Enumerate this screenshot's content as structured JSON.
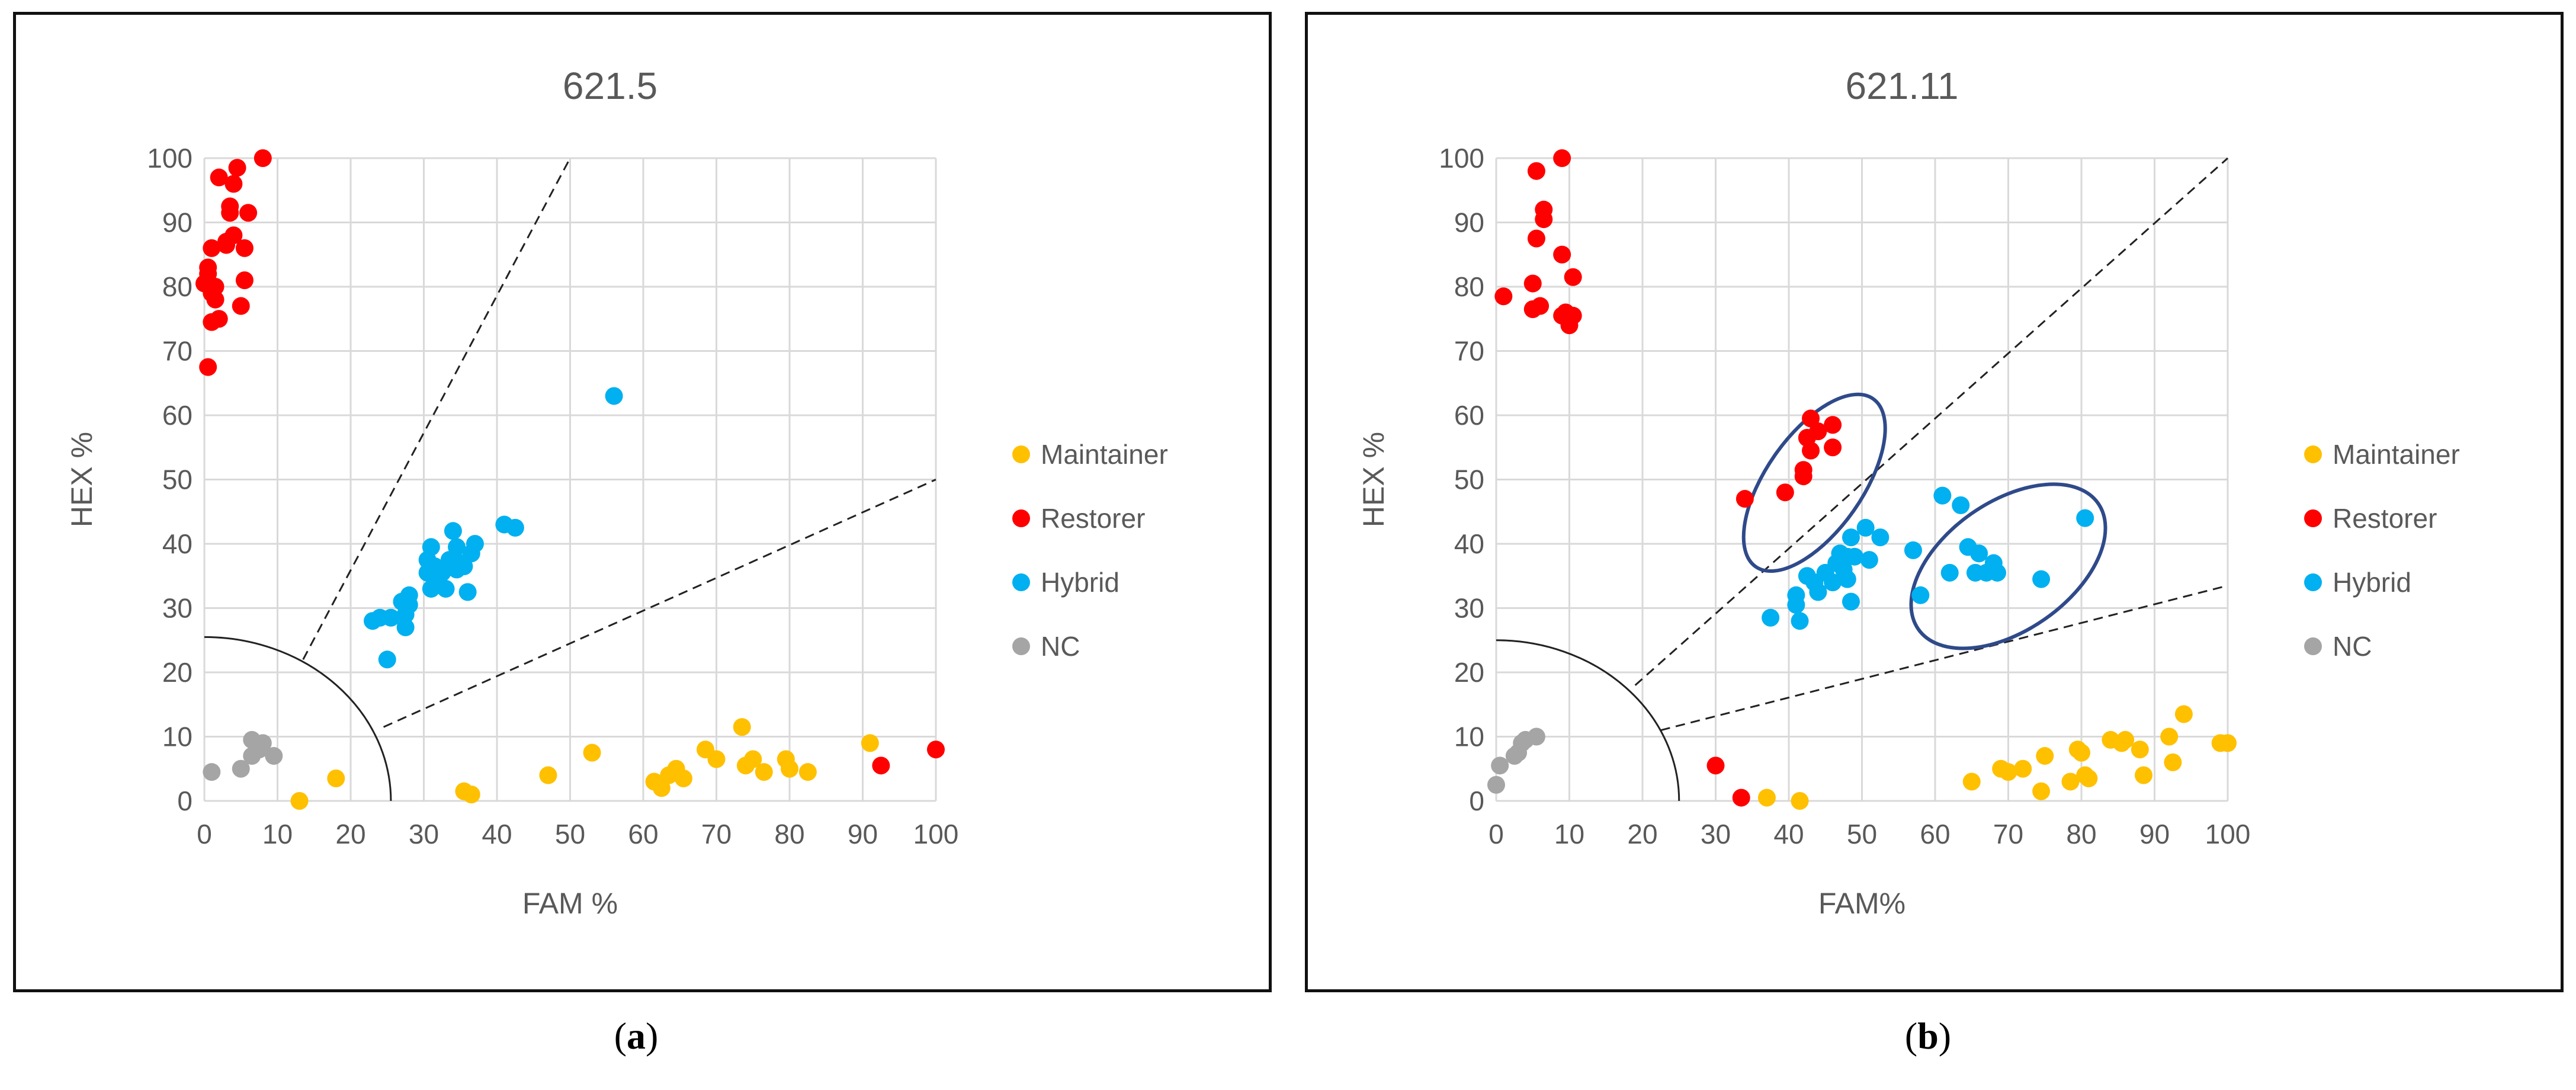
{
  "chart_data": [
    {
      "type": "scatter",
      "panel_label": "a",
      "title": "621.5",
      "xlabel": "FAM %",
      "ylabel": "HEX %",
      "xlim": [
        0,
        100
      ],
      "ylim": [
        0,
        100
      ],
      "xticks": [
        "0",
        "10",
        "20",
        "30",
        "40",
        "50",
        "60",
        "70",
        "80",
        "90",
        "100"
      ],
      "yticks": [
        "0",
        "10",
        "20",
        "30",
        "40",
        "50",
        "60",
        "70",
        "80",
        "90",
        "100"
      ],
      "grid": true,
      "legend_position": "right",
      "threshold_radius": 25.5,
      "guide_lines": [
        {
          "from": [
            13.5,
            22
          ],
          "to": [
            50,
            100
          ]
        },
        {
          "from": [
            24.5,
            11.5
          ],
          "to": [
            100,
            50
          ]
        }
      ],
      "series": [
        {
          "name": "Maintainer",
          "color": "#FFC000",
          "points": [
            [
              13,
              0
            ],
            [
              18,
              3.5
            ],
            [
              35.5,
              1.5
            ],
            [
              36.5,
              1
            ],
            [
              47,
              4
            ],
            [
              53,
              7.5
            ],
            [
              61.5,
              3
            ],
            [
              62.5,
              2
            ],
            [
              63.5,
              4
            ],
            [
              64.5,
              5
            ],
            [
              65.5,
              3.5
            ],
            [
              68.5,
              8
            ],
            [
              70,
              6.5
            ],
            [
              73.5,
              11.5
            ],
            [
              74,
              5.5
            ],
            [
              75,
              6.5
            ],
            [
              76.5,
              4.5
            ],
            [
              79.5,
              6.5
            ],
            [
              80,
              5
            ],
            [
              82.5,
              4.5
            ],
            [
              91,
              9
            ]
          ]
        },
        {
          "name": "Restorer",
          "color": "#FF0000",
          "points": [
            [
              0,
              80.5
            ],
            [
              0.5,
              83
            ],
            [
              0.5,
              82
            ],
            [
              1,
              86
            ],
            [
              1,
              79
            ],
            [
              1,
              74.5
            ],
            [
              1.5,
              78
            ],
            [
              1.5,
              80
            ],
            [
              2,
              75
            ],
            [
              2,
              97
            ],
            [
              3,
              87
            ],
            [
              3,
              86.5
            ],
            [
              3.5,
              91.5
            ],
            [
              3.5,
              92.5
            ],
            [
              4,
              96
            ],
            [
              4,
              88
            ],
            [
              4.5,
              98.5
            ],
            [
              5,
              77
            ],
            [
              5.5,
              86
            ],
            [
              5.5,
              81
            ],
            [
              6,
              91.5
            ],
            [
              8,
              100
            ],
            [
              0.5,
              67.5
            ],
            [
              92.5,
              5.5
            ],
            [
              100,
              8
            ]
          ]
        },
        {
          "name": "Hybrid",
          "color": "#00B0F0",
          "points": [
            [
              23,
              28
            ],
            [
              24,
              28.5
            ],
            [
              25,
              22
            ],
            [
              25.5,
              28.5
            ],
            [
              27,
              31
            ],
            [
              27.5,
              27
            ],
            [
              27.5,
              29
            ],
            [
              28,
              32
            ],
            [
              28,
              30.5
            ],
            [
              30.5,
              35.5
            ],
            [
              30.5,
              37.5
            ],
            [
              31,
              33
            ],
            [
              31,
              39.5
            ],
            [
              31.5,
              36.5
            ],
            [
              32,
              34
            ],
            [
              32.5,
              35.5
            ],
            [
              33,
              33
            ],
            [
              33.5,
              37.5
            ],
            [
              34,
              42
            ],
            [
              34.5,
              36
            ],
            [
              34.5,
              39.5
            ],
            [
              35,
              37
            ],
            [
              35.5,
              36.5
            ],
            [
              36,
              32.5
            ],
            [
              36.5,
              38.5
            ],
            [
              37,
              40
            ],
            [
              41,
              43
            ],
            [
              42.5,
              42.5
            ],
            [
              56,
              63
            ]
          ]
        },
        {
          "name": "NC",
          "color": "#A5A5A5",
          "points": [
            [
              1,
              4.5
            ],
            [
              5,
              5
            ],
            [
              6.5,
              9.5
            ],
            [
              6.5,
              7
            ],
            [
              7.5,
              8
            ],
            [
              8,
              9
            ],
            [
              9.5,
              7
            ]
          ]
        }
      ]
    },
    {
      "type": "scatter",
      "panel_label": "b",
      "title": "621.11",
      "xlabel": "FAM%",
      "ylabel": "HEX %",
      "xlim": [
        0,
        100
      ],
      "ylim": [
        0,
        100
      ],
      "xticks": [
        "0",
        "10",
        "20",
        "30",
        "40",
        "50",
        "60",
        "70",
        "80",
        "90",
        "100"
      ],
      "yticks": [
        "0",
        "10",
        "20",
        "30",
        "40",
        "50",
        "60",
        "70",
        "80",
        "90",
        "100"
      ],
      "grid": true,
      "legend_position": "right",
      "threshold_radius": 25,
      "guide_lines": [
        {
          "from": [
            19,
            18
          ],
          "to": [
            100,
            100
          ]
        },
        {
          "from": [
            22.5,
            11
          ],
          "to": [
            100,
            33.5
          ]
        }
      ],
      "ellipses": [
        {
          "cx": 43.5,
          "cy": 49.5,
          "rx": 14,
          "ry": 7.5,
          "angle": -55
        },
        {
          "cx": 70,
          "cy": 36.5,
          "rx": 15,
          "ry": 10,
          "angle": -35
        }
      ],
      "series": [
        {
          "name": "Maintainer",
          "color": "#FFC000",
          "points": [
            [
              37,
              0.5
            ],
            [
              41.5,
              0
            ],
            [
              65,
              3
            ],
            [
              69,
              5
            ],
            [
              70,
              4.5
            ],
            [
              72,
              5
            ],
            [
              74.5,
              1.5
            ],
            [
              75,
              7
            ],
            [
              78.5,
              3
            ],
            [
              79.5,
              8
            ],
            [
              80,
              7.5
            ],
            [
              80.5,
              4
            ],
            [
              81,
              3.5
            ],
            [
              84,
              9.5
            ],
            [
              85.5,
              9
            ],
            [
              86,
              9.5
            ],
            [
              88,
              8
            ],
            [
              88.5,
              4
            ],
            [
              92,
              10
            ],
            [
              92.5,
              6
            ],
            [
              94,
              13.5
            ],
            [
              99,
              9
            ],
            [
              100,
              9
            ]
          ]
        },
        {
          "name": "Restorer",
          "color": "#FF0000",
          "points": [
            [
              1,
              78.5
            ],
            [
              5,
              80.5
            ],
            [
              5,
              76.5
            ],
            [
              5.5,
              87.5
            ],
            [
              5.5,
              98
            ],
            [
              6,
              77
            ],
            [
              6.5,
              90.5
            ],
            [
              6.5,
              92
            ],
            [
              9,
              100
            ],
            [
              9,
              85
            ],
            [
              9,
              75.5
            ],
            [
              9.5,
              76
            ],
            [
              10,
              74
            ],
            [
              10,
              75
            ],
            [
              10.5,
              81.5
            ],
            [
              10.5,
              75.5
            ],
            [
              30,
              5.5
            ],
            [
              33.5,
              0.5
            ],
            [
              34,
              47
            ],
            [
              39.5,
              48
            ],
            [
              42,
              51.5
            ],
            [
              42,
              50.5
            ],
            [
              42.5,
              56.5
            ],
            [
              43,
              59.5
            ],
            [
              43,
              54.5
            ],
            [
              44,
              57.5
            ],
            [
              46,
              58.5
            ],
            [
              46,
              55
            ]
          ]
        },
        {
          "name": "Hybrid",
          "color": "#00B0F0",
          "points": [
            [
              37.5,
              28.5
            ],
            [
              41,
              32
            ],
            [
              41,
              30.5
            ],
            [
              41.5,
              28
            ],
            [
              42.5,
              35
            ],
            [
              43.5,
              34
            ],
            [
              44,
              32.5
            ],
            [
              45,
              35.5
            ],
            [
              46,
              34
            ],
            [
              46.5,
              37
            ],
            [
              47,
              38.5
            ],
            [
              47.5,
              36
            ],
            [
              48,
              34.5
            ],
            [
              48,
              38
            ],
            [
              48.5,
              31
            ],
            [
              48.5,
              41
            ],
            [
              49,
              38
            ],
            [
              50.5,
              42.5
            ],
            [
              51,
              37.5
            ],
            [
              52.5,
              41
            ],
            [
              57,
              39
            ],
            [
              58,
              32
            ],
            [
              61,
              47.5
            ],
            [
              62,
              35.5
            ],
            [
              63.5,
              46
            ],
            [
              64.5,
              39.5
            ],
            [
              65.5,
              35.5
            ],
            [
              66,
              38.5
            ],
            [
              67,
              35.5
            ],
            [
              68,
              37
            ],
            [
              68.5,
              35.5
            ],
            [
              74.5,
              34.5
            ],
            [
              80.5,
              44
            ]
          ]
        },
        {
          "name": "NC",
          "color": "#A5A5A5",
          "points": [
            [
              0,
              2.5
            ],
            [
              0.5,
              5.5
            ],
            [
              2.5,
              7
            ],
            [
              3,
              7.5
            ],
            [
              3.5,
              9
            ],
            [
              4,
              9.5
            ],
            [
              5.5,
              10
            ]
          ]
        }
      ]
    }
  ]
}
